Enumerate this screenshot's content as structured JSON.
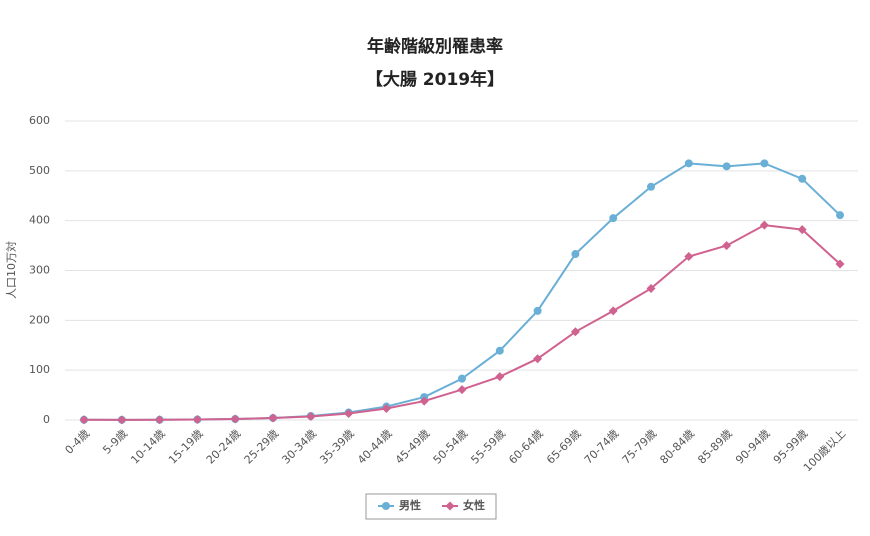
{
  "chart_data": {
    "type": "line",
    "title": "年齢階級別罹患率",
    "subtitle": "【大腸 2019年】",
    "y_label": "人口10万対",
    "categories": [
      "0-4歳",
      "5-9歳",
      "10-14歳",
      "15-19歳",
      "20-24歳",
      "25-29歳",
      "30-34歳",
      "35-39歳",
      "40-44歳",
      "45-49歳",
      "50-54歳",
      "55-59歳",
      "60-64歳",
      "65-69歳",
      "70-74歳",
      "75-79歳",
      "80-84歳",
      "85-89歳",
      "90-94歳",
      "95-99歳",
      "100歳以上"
    ],
    "series": [
      {
        "name": "男性",
        "color": "#6aafd6",
        "marker": "circle",
        "values": [
          0.5,
          0.3,
          0.5,
          1,
          2,
          4,
          8,
          15,
          27,
          46,
          83,
          139,
          219,
          333,
          405,
          468,
          515,
          509,
          515,
          484,
          411
        ]
      },
      {
        "name": "女性",
        "color": "#d0628f",
        "marker": "diamond",
        "values": [
          0.5,
          0.3,
          0.5,
          1,
          2,
          4,
          7,
          13,
          23,
          38,
          61,
          87,
          123,
          177,
          219,
          264,
          328,
          350,
          391,
          382,
          313
        ]
      }
    ],
    "ylim": [
      0,
      600
    ],
    "yticks": [
      0,
      100,
      200,
      300,
      400,
      500,
      600
    ],
    "grid": true
  }
}
